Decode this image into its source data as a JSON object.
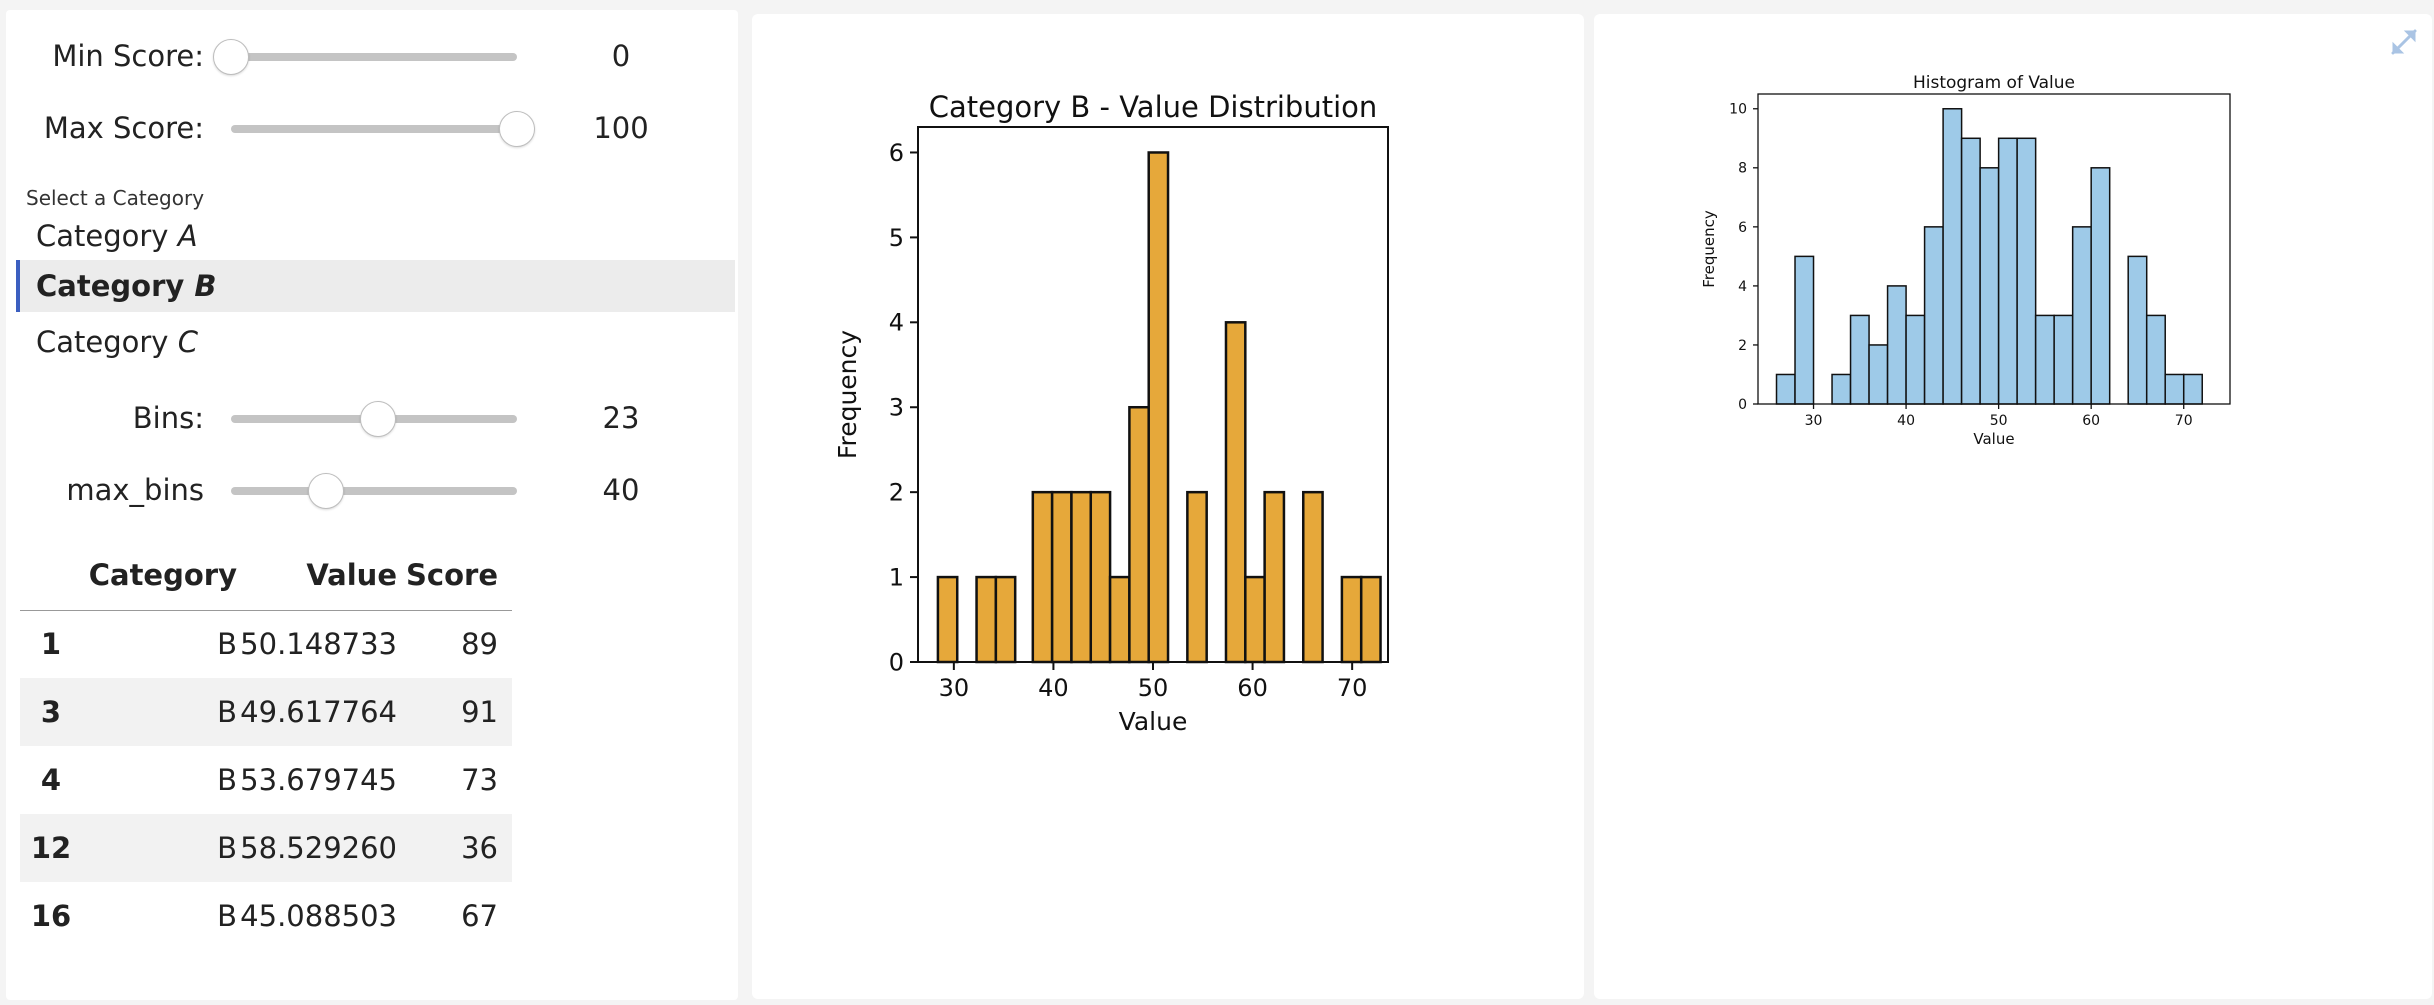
{
  "sidebar": {
    "sliders": [
      {
        "id": "min-score",
        "label": "Min Score:",
        "value": "0",
        "fraction": 0.0
      },
      {
        "id": "max-score",
        "label": "Max Score:",
        "value": "100",
        "fraction": 1.0
      }
    ],
    "category_select": {
      "title": "Select a Category",
      "options": [
        {
          "prefix": "Category ",
          "letter": "A",
          "selected": false
        },
        {
          "prefix": "Category ",
          "letter": "B",
          "selected": true
        },
        {
          "prefix": "Category ",
          "letter": "C",
          "selected": false
        }
      ]
    },
    "bin_sliders": [
      {
        "id": "bins",
        "label": "Bins:",
        "value": "23",
        "fraction": 0.513
      },
      {
        "id": "max-bins",
        "label": "max_bins",
        "value": "40",
        "fraction": 0.333
      }
    ],
    "table": {
      "headers": [
        "",
        "Category",
        "Value",
        "Score"
      ],
      "rows": [
        [
          "1",
          "B",
          "50.148733",
          "89"
        ],
        [
          "3",
          "B",
          "49.617764",
          "91"
        ],
        [
          "4",
          "B",
          "53.679745",
          "73"
        ],
        [
          "12",
          "B",
          "58.529260",
          "36"
        ],
        [
          "16",
          "B",
          "45.088503",
          "67"
        ]
      ]
    }
  },
  "chart_data": [
    {
      "type": "bar",
      "title": "Category B - Value Distribution",
      "xlabel": "Value",
      "ylabel": "Frequency",
      "bar_color": "#e6a83a",
      "xlim": [
        26.4,
        73.6
      ],
      "ylim": [
        0,
        6.3
      ],
      "xticks": [
        30,
        40,
        50,
        60,
        70
      ],
      "yticks": [
        0,
        1,
        2,
        3,
        4,
        5,
        6
      ],
      "bin_width": 1.94,
      "bin_starts": [
        28.4,
        32.28,
        34.22,
        37.93,
        39.87,
        41.81,
        43.75,
        45.69,
        47.63,
        49.57,
        53.45,
        57.33,
        59.27,
        61.21,
        65.09,
        68.97,
        70.91
      ],
      "values": [
        1,
        1,
        1,
        2,
        2,
        2,
        2,
        1,
        3,
        6,
        2,
        4,
        1,
        2,
        2,
        1,
        1
      ]
    },
    {
      "type": "bar",
      "title": "Histogram of Value",
      "xlabel": "Value",
      "ylabel": "Frequency",
      "bar_color": "#9ecae8",
      "xlim": [
        24.0,
        75.0
      ],
      "ylim": [
        0,
        10.5
      ],
      "xticks": [
        30,
        40,
        50,
        60,
        70
      ],
      "yticks": [
        0,
        2,
        4,
        6,
        8,
        10
      ],
      "bin_width": 2.0,
      "bin_starts": [
        26,
        28,
        32,
        34,
        36,
        38,
        40,
        42,
        44,
        46,
        48,
        50,
        52,
        54,
        56,
        58,
        60,
        64,
        66,
        68,
        70
      ],
      "values": [
        1,
        5,
        1,
        3,
        2,
        4,
        3,
        6,
        10,
        9,
        8,
        9,
        9,
        3,
        3,
        6,
        8,
        5,
        3,
        1,
        1
      ]
    }
  ]
}
